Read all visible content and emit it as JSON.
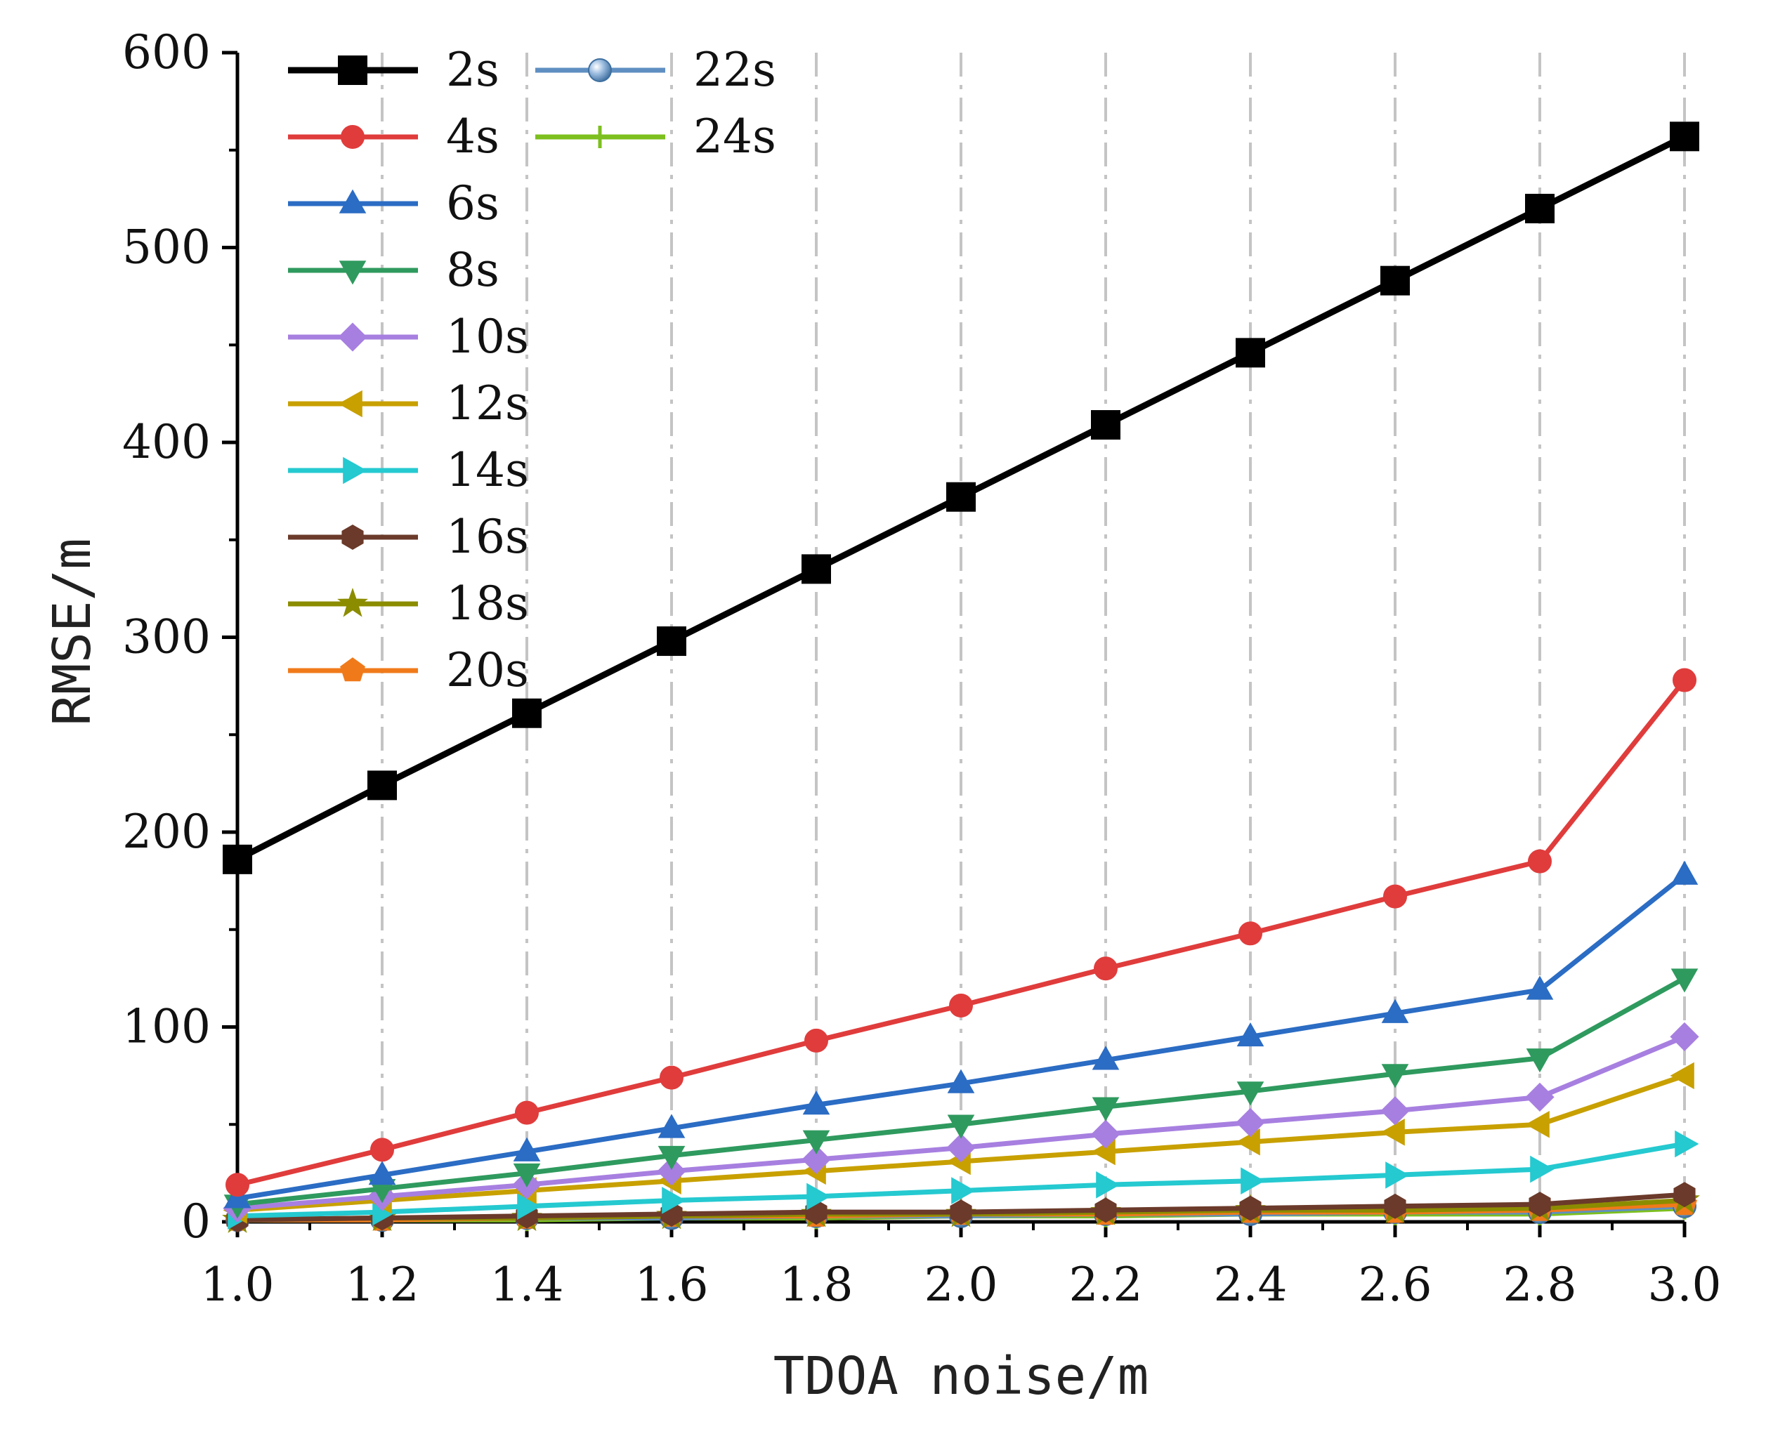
{
  "chart_data": {
    "type": "line",
    "title": "",
    "xlabel": "TDOA noise/m",
    "ylabel": "RMSE/m",
    "xlim": [
      1.0,
      3.0
    ],
    "ylim": [
      0,
      600
    ],
    "x": [
      1.0,
      1.2,
      1.4,
      1.6,
      1.8,
      2.0,
      2.2,
      2.4,
      2.6,
      2.8,
      3.0
    ],
    "x_tick_labels": [
      "1.0",
      "1.2",
      "1.4",
      "1.6",
      "1.8",
      "2.0",
      "2.2",
      "2.4",
      "2.6",
      "2.8",
      "3.0"
    ],
    "y_ticks": [
      0,
      100,
      200,
      300,
      400,
      500,
      600
    ],
    "y_tick_labels": [
      "0",
      "100",
      "200",
      "300",
      "400",
      "500",
      "600"
    ],
    "grid": "vertical dash-dot",
    "legend_position": "top-left",
    "series": [
      {
        "name": "2s",
        "color": "#000000",
        "marker": "square",
        "values": [
          186,
          224,
          261,
          298,
          335,
          372,
          409,
          446,
          483,
          520,
          557
        ]
      },
      {
        "name": "4s",
        "color": "#e03c3c",
        "marker": "circle",
        "values": [
          19,
          37,
          56,
          74,
          93,
          111,
          130,
          148,
          167,
          185,
          278
        ]
      },
      {
        "name": "6s",
        "color": "#2b6cc4",
        "marker": "triangle-up",
        "values": [
          12,
          24,
          36,
          48,
          60,
          71,
          83,
          95,
          107,
          119,
          178
        ]
      },
      {
        "name": "8s",
        "color": "#2f9a5e",
        "marker": "triangle-down",
        "values": [
          9,
          17,
          25,
          34,
          42,
          50,
          59,
          67,
          76,
          84,
          125
        ]
      },
      {
        "name": "10s",
        "color": "#a77fe0",
        "marker": "diamond",
        "values": [
          7,
          13,
          19,
          26,
          32,
          38,
          45,
          51,
          57,
          64,
          95
        ]
      },
      {
        "name": "12s",
        "color": "#c8a000",
        "marker": "triangle-left",
        "values": [
          6,
          11,
          16,
          21,
          26,
          31,
          36,
          41,
          46,
          50,
          75
        ]
      },
      {
        "name": "14s",
        "color": "#25c9d0",
        "marker": "triangle-right",
        "values": [
          3,
          5,
          8,
          11,
          13,
          16,
          19,
          21,
          24,
          27,
          40
        ]
      },
      {
        "name": "16s",
        "color": "#6b3a2a",
        "marker": "hexagon",
        "values": [
          1,
          2,
          3,
          4,
          5,
          5,
          6,
          7,
          8,
          9,
          14
        ]
      },
      {
        "name": "18s",
        "color": "#8c8c00",
        "marker": "star",
        "values": [
          1,
          2,
          2,
          3,
          4,
          4,
          5,
          6,
          6,
          7,
          11
        ]
      },
      {
        "name": "20s",
        "color": "#f07a1a",
        "marker": "pentagon",
        "values": [
          1,
          1,
          2,
          3,
          3,
          4,
          4,
          5,
          5,
          6,
          9
        ]
      },
      {
        "name": "22s",
        "color": "#5f8fc2",
        "marker": "sphere",
        "values": [
          1,
          1,
          2,
          2,
          3,
          3,
          4,
          4,
          5,
          5,
          8
        ]
      },
      {
        "name": "24s",
        "color": "#7cbf1e",
        "marker": "plus",
        "values": [
          1,
          1,
          1,
          2,
          2,
          3,
          3,
          4,
          4,
          4,
          7
        ]
      }
    ]
  }
}
